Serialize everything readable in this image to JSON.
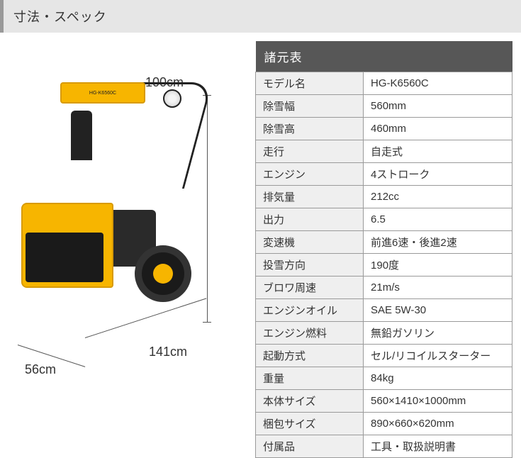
{
  "header": {
    "title": "寸法・スペック"
  },
  "dimensions": {
    "height": "100cm",
    "length": "141cm",
    "width": "56cm"
  },
  "product_label": "HG-K6560C",
  "spec_table": {
    "title": "諸元表",
    "rows": [
      {
        "label": "モデル名",
        "value": "HG-K6560C"
      },
      {
        "label": "除雪幅",
        "value": "560mm"
      },
      {
        "label": "除雪高",
        "value": "460mm"
      },
      {
        "label": "走行",
        "value": "自走式"
      },
      {
        "label": "エンジン",
        "value": "4ストローク"
      },
      {
        "label": "排気量",
        "value": "212cc"
      },
      {
        "label": "出力",
        "value": "6.5"
      },
      {
        "label": "変速機",
        "value": "前進6速・後進2速"
      },
      {
        "label": "投雪方向",
        "value": "190度"
      },
      {
        "label": "ブロワ周速",
        "value": "21m/s"
      },
      {
        "label": "エンジンオイル",
        "value": "SAE 5W-30"
      },
      {
        "label": "エンジン燃料",
        "value": "無鉛ガソリン"
      },
      {
        "label": "起動方式",
        "value": "セル/リコイルスターター"
      },
      {
        "label": "重量",
        "value": "84kg"
      },
      {
        "label": "本体サイズ",
        "value": "560×1410×1000mm"
      },
      {
        "label": "梱包サイズ",
        "value": "890×660×620mm"
      },
      {
        "label": "付属品",
        "value": "工具・取扱説明書"
      }
    ]
  },
  "styling": {
    "header_bg": "#e6e6e6",
    "header_accent": "#999999",
    "table_header_bg": "#575757",
    "table_header_fg": "#ffffff",
    "label_cell_bg": "#efefef",
    "value_cell_bg": "#ffffff",
    "border_color": "#9a9a9a",
    "product_color": "#f7b500",
    "text_color": "#333333",
    "font_size_header": 18,
    "font_size_table_title": 17,
    "font_size_cell": 15,
    "font_size_dim": 18
  }
}
